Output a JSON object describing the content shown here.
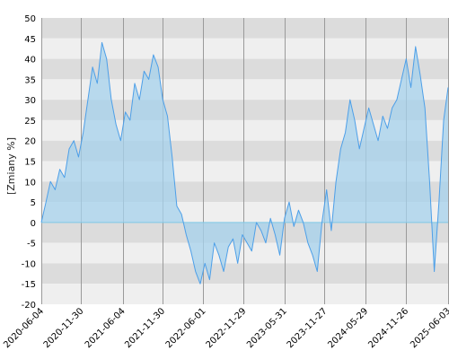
{
  "chart_data": {
    "type": "area",
    "ylabel": "[Zmiany %]",
    "ylim": [
      -20,
      50
    ],
    "y_ticks": [
      50,
      45,
      40,
      35,
      30,
      25,
      20,
      15,
      10,
      5,
      0,
      -5,
      -10,
      -15,
      -20
    ],
    "x_range": [
      "2020-06-04",
      "2025-06-03"
    ],
    "x_ticks": [
      "2020-06-04",
      "2020-11-30",
      "2021-06-04",
      "2021-11-30",
      "2022-06-01",
      "2022-11-29",
      "2023-05-31",
      "2023-11-27",
      "2024-05-29",
      "2024-11-26",
      "2025-06-03"
    ],
    "grid": true,
    "colors": {
      "line": "#4d9fe8",
      "area": "#a6d2ec",
      "band_dark": "#dcdcdc",
      "band_light": "#efefef",
      "zero_line": "#7ec8e6",
      "vgrid": "#9a9a9a"
    },
    "series": [
      {
        "x": [
          "2020-06-04",
          "2020-06-25",
          "2020-07-15",
          "2020-08-05",
          "2020-08-26",
          "2020-09-16",
          "2020-10-07",
          "2020-10-28",
          "2020-11-18",
          "2020-12-09",
          "2020-12-30",
          "2021-01-20",
          "2021-02-10",
          "2021-03-03",
          "2021-03-24",
          "2021-04-14",
          "2021-05-05",
          "2021-05-26",
          "2021-06-16",
          "2021-07-07",
          "2021-07-28",
          "2021-08-18",
          "2021-09-08",
          "2021-09-29",
          "2021-10-20",
          "2021-11-10",
          "2021-12-01",
          "2021-12-22",
          "2022-01-12",
          "2022-02-02",
          "2022-02-23",
          "2022-03-16",
          "2022-04-06",
          "2022-04-27",
          "2022-05-18",
          "2022-06-08",
          "2022-06-29",
          "2022-07-20",
          "2022-08-10",
          "2022-08-31",
          "2022-09-21",
          "2022-10-12",
          "2022-11-02",
          "2022-11-23",
          "2022-12-14",
          "2023-01-04",
          "2023-01-25",
          "2023-02-15",
          "2023-03-08",
          "2023-03-29",
          "2023-04-19",
          "2023-05-10",
          "2023-05-31",
          "2023-06-21",
          "2023-07-12",
          "2023-08-02",
          "2023-08-23",
          "2023-09-13",
          "2023-10-04",
          "2023-10-25",
          "2023-11-15",
          "2023-12-06",
          "2023-12-27",
          "2024-01-17",
          "2024-02-07",
          "2024-02-28",
          "2024-03-20",
          "2024-04-10",
          "2024-05-01",
          "2024-05-22",
          "2024-06-12",
          "2024-07-03",
          "2024-07-24",
          "2024-08-14",
          "2024-09-04",
          "2024-09-25",
          "2024-10-16",
          "2024-11-06",
          "2024-11-27",
          "2024-12-18",
          "2025-01-08",
          "2025-01-29",
          "2025-02-19",
          "2025-03-12",
          "2025-04-02",
          "2025-04-23",
          "2025-05-14",
          "2025-06-03"
        ],
        "values": [
          0,
          5,
          10,
          8,
          13,
          11,
          18,
          20,
          16,
          22,
          30,
          38,
          34,
          44,
          40,
          30,
          24,
          20,
          27,
          25,
          34,
          30,
          37,
          35,
          41,
          38,
          30,
          26,
          16,
          4,
          2,
          -3,
          -7,
          -12,
          -15,
          -10,
          -14,
          -5,
          -8,
          -12,
          -6,
          -4,
          -10,
          -3,
          -5,
          -7,
          0,
          -2,
          -5,
          1,
          -3,
          -8,
          1,
          5,
          -1,
          3,
          0,
          -5,
          -8,
          -12,
          0,
          8,
          -2,
          10,
          18,
          22,
          30,
          25,
          18,
          23,
          28,
          24,
          20,
          26,
          23,
          28,
          30,
          35,
          40,
          33,
          43,
          36,
          28,
          10,
          -12,
          5,
          25,
          33
        ]
      }
    ]
  }
}
